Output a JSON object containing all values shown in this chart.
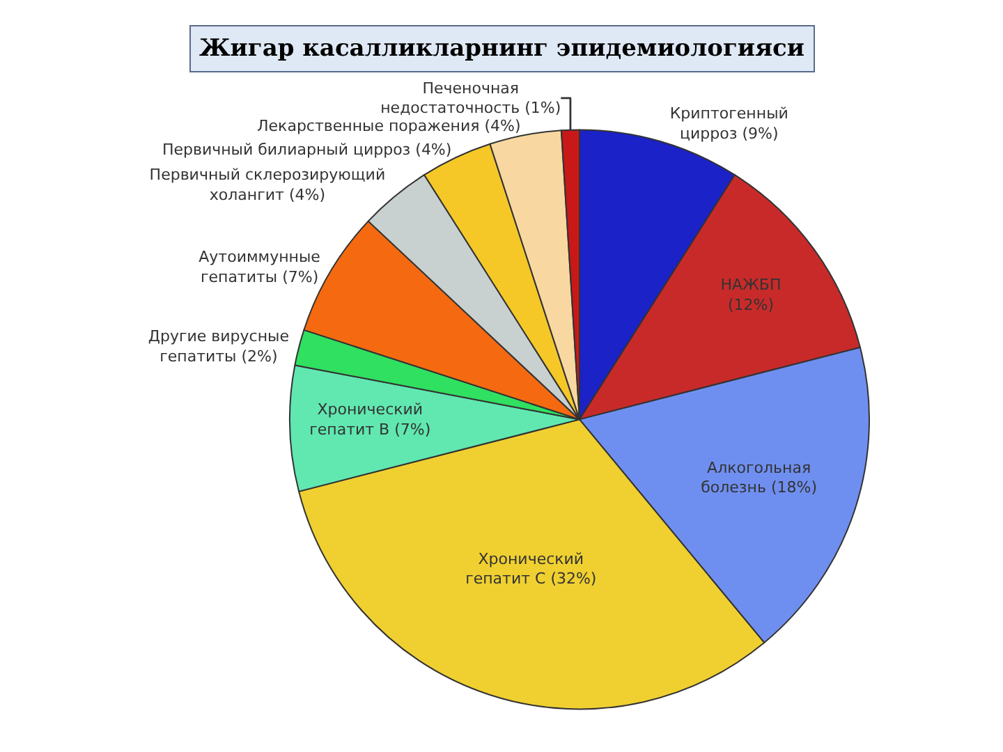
{
  "chart_data": {
    "type": "pie",
    "title": "Жигар касалликларнинг эпидемиологияси",
    "categories": [
      "Криптогенный\nцирроз (9%)",
      "НАЖБП\n(12%)",
      "Алкогольная\nболезнь (18%)",
      "Хронический\nгепатит С (32%)",
      "Хронический\nгепатит В (7%)",
      "Другие вирусные\nгепатиты (2%)",
      "Аутоиммунные\nгепатиты (7%)",
      "Первичный склерозирующий\nхолангит (4%)",
      "Первичный билиарный цирроз (4%)",
      "Лекарственные поражения (4%)",
      "Печеночная\nнедостаточность (1%)"
    ],
    "values": [
      9,
      12,
      18,
      32,
      7,
      2,
      7,
      4,
      4,
      4,
      1
    ],
    "colors": [
      "#1a22c8",
      "#c82a2a",
      "#6f8ff0",
      "#f0d030",
      "#60e8b0",
      "#30e060",
      "#f56a10",
      "#c8d0d0",
      "#f5c828",
      "#f8d8a0",
      "#c81818"
    ],
    "legend": false
  }
}
